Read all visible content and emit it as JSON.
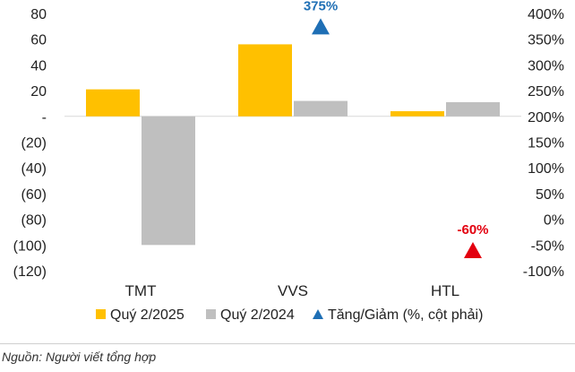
{
  "chart_data": {
    "type": "bar",
    "categories": [
      "TMT",
      "VVS",
      "HTL"
    ],
    "series": [
      {
        "name": "Quý 2/2025",
        "color": "#FFC000",
        "values": [
          21,
          56,
          4
        ]
      },
      {
        "name": "Quý 2/2024",
        "color": "#BFBFBF",
        "values": [
          -100,
          12,
          11
        ]
      }
    ],
    "change_series": {
      "name": "Tăng/Giảm (%, cột phải)",
      "points": [
        {
          "category": "VVS",
          "value": 375,
          "label": "375%",
          "color": "#1F6FB5"
        },
        {
          "category": "HTL",
          "value": -60,
          "label": "-60%",
          "color": "#E3000F"
        }
      ]
    },
    "ylim_left": [
      -120,
      80
    ],
    "yticks_left": [
      "80",
      "60",
      "40",
      "20",
      "-",
      "(20)",
      "(40)",
      "(60)",
      "(80)",
      "(100)",
      "(120)"
    ],
    "ylim_right": [
      -100,
      400
    ],
    "yticks_right": [
      "400%",
      "350%",
      "300%",
      "250%",
      "200%",
      "150%",
      "100%",
      "50%",
      "0%",
      "-50%",
      "-100%"
    ],
    "legend": [
      "Quý 2/2025",
      "Quý 2/2024",
      "Tăng/Giảm (%, cột phải)"
    ],
    "source": "Nguồn: Người viết tổng hợp"
  }
}
